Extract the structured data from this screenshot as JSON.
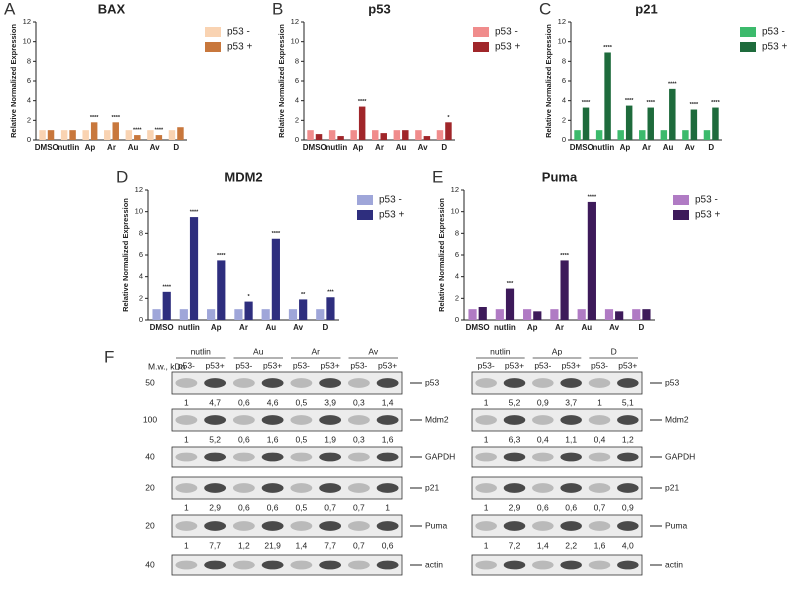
{
  "chart_data": [
    {
      "type": "bar",
      "panel": "A",
      "title": "BAX",
      "ylabel": "Relative Normalized Expression",
      "categories": [
        "DMSO",
        "nutlin",
        "Ap",
        "Ar",
        "Au",
        "Av",
        "D"
      ],
      "ylim": [
        0,
        12
      ],
      "yticks": [
        0,
        2,
        4,
        6,
        8,
        10,
        12
      ],
      "series": [
        {
          "name": "p53 -",
          "color": "#f9d3b2",
          "values": [
            1.0,
            1.0,
            1.0,
            1.0,
            1.0,
            1.0,
            1.0
          ]
        },
        {
          "name": "p53 +",
          "color": "#c8773c",
          "values": [
            1.0,
            1.0,
            1.8,
            1.8,
            0.5,
            0.5,
            1.3
          ],
          "significance": [
            null,
            null,
            "****",
            "****",
            "****",
            "****",
            null
          ]
        }
      ]
    },
    {
      "type": "bar",
      "panel": "B",
      "title": "p53",
      "ylabel": "Relative Normalized Expression",
      "categories": [
        "DMSO",
        "nutlin",
        "Ap",
        "Ar",
        "Au",
        "Av",
        "D"
      ],
      "ylim": [
        0,
        12
      ],
      "yticks": [
        0,
        2,
        4,
        6,
        8,
        10,
        12
      ],
      "series": [
        {
          "name": "p53 -",
          "color": "#f08c8c",
          "values": [
            1.0,
            1.0,
            1.0,
            1.0,
            1.0,
            1.0,
            1.0
          ]
        },
        {
          "name": "p53 +",
          "color": "#a0262a",
          "values": [
            0.6,
            0.4,
            3.4,
            0.7,
            1.0,
            0.4,
            1.8
          ],
          "significance": [
            null,
            null,
            "****",
            null,
            null,
            null,
            "*"
          ]
        }
      ]
    },
    {
      "type": "bar",
      "panel": "C",
      "title": "p21",
      "ylabel": "Relative Normalized Expression",
      "categories": [
        "DMSO",
        "nutlin",
        "Ap",
        "Ar",
        "Au",
        "Av",
        "D"
      ],
      "ylim": [
        0,
        12
      ],
      "yticks": [
        0,
        2,
        4,
        6,
        8,
        10,
        12
      ],
      "series": [
        {
          "name": "p53 -",
          "color": "#3cba6c",
          "values": [
            1.0,
            1.0,
            1.0,
            1.0,
            1.0,
            1.0,
            1.0
          ]
        },
        {
          "name": "p53 +",
          "color": "#1e6b3c",
          "values": [
            3.3,
            8.9,
            3.5,
            3.3,
            5.2,
            3.1,
            3.3
          ],
          "significance": [
            "****",
            "****",
            "****",
            "****",
            "****",
            "****",
            "****"
          ]
        }
      ]
    },
    {
      "type": "bar",
      "panel": "D",
      "title": "MDM2",
      "ylabel": "Relative Normalized Expression",
      "categories": [
        "DMSO",
        "nutlin",
        "Ap",
        "Ar",
        "Au",
        "Av",
        "D"
      ],
      "ylim": [
        0,
        12
      ],
      "yticks": [
        0,
        2,
        4,
        6,
        8,
        10,
        12
      ],
      "series": [
        {
          "name": "p53 -",
          "color": "#9fa6d9",
          "values": [
            1.0,
            1.0,
            1.0,
            1.0,
            1.0,
            1.0,
            1.0
          ]
        },
        {
          "name": "p53 +",
          "color": "#2e2e7e",
          "values": [
            2.6,
            9.5,
            5.5,
            1.7,
            7.5,
            1.9,
            2.1
          ],
          "significance": [
            "****",
            "****",
            "****",
            "*",
            "****",
            "**",
            "***"
          ]
        }
      ]
    },
    {
      "type": "bar",
      "panel": "E",
      "title": "Puma",
      "ylabel": "Relative Normalized Expression",
      "categories": [
        "DMSO",
        "nutlin",
        "Ap",
        "Ar",
        "Au",
        "Av",
        "D"
      ],
      "ylim": [
        0,
        12
      ],
      "yticks": [
        0,
        2,
        4,
        6,
        8,
        10,
        12
      ],
      "series": [
        {
          "name": "p53 -",
          "color": "#b07bc4",
          "values": [
            1.0,
            1.0,
            1.0,
            1.0,
            1.0,
            1.0,
            1.0
          ]
        },
        {
          "name": "p53 +",
          "color": "#3d1a5a",
          "values": [
            1.2,
            2.9,
            0.8,
            5.5,
            10.9,
            0.8,
            1.0
          ],
          "significance": [
            null,
            "***",
            null,
            "****",
            "****",
            null,
            null
          ]
        }
      ]
    }
  ],
  "blot": {
    "panel": "F",
    "mw_label": "M.w., kDa",
    "left": {
      "groups": [
        "nutlin",
        "Au",
        "Ar",
        "Av"
      ],
      "lanes": [
        "p53-",
        "p53+",
        "p53-",
        "p53+",
        "p53-",
        "p53+",
        "p53-",
        "p53+"
      ]
    },
    "right": {
      "groups": [
        "nutlin",
        "Ap",
        "D"
      ],
      "lanes": [
        "p53-",
        "p53+",
        "p53-",
        "p53+",
        "p53-",
        "p53+"
      ]
    },
    "rows": [
      {
        "marker": "50",
        "label": "p53",
        "left": [
          "1",
          "4,7",
          "0,6",
          "4,6",
          "0,5",
          "3,9",
          "0,3",
          "1,4"
        ],
        "right": [
          "1",
          "5,2",
          "0,9",
          "3,7",
          "1",
          "5,1"
        ]
      },
      {
        "marker": "100",
        "label": "Mdm2",
        "left": [
          "1",
          "5,2",
          "0,6",
          "1,6",
          "0,5",
          "1,9",
          "0,3",
          "1,6"
        ],
        "right": [
          "1",
          "6,3",
          "0,4",
          "1,1",
          "0,4",
          "1,2"
        ]
      },
      {
        "marker": "40",
        "label": "GAPDH"
      },
      {
        "marker": "20",
        "label": "p21",
        "left": [
          "1",
          "2,9",
          "0,6",
          "0,6",
          "0,5",
          "0,7",
          "0,7",
          "1"
        ],
        "right": [
          "1",
          "2,9",
          "0,6",
          "0,6",
          "0,7",
          "0,9"
        ]
      },
      {
        "marker": "20",
        "label": "Puma",
        "left": [
          "1",
          "7,7",
          "1,2",
          "21,9",
          "1,4",
          "7,7",
          "0,7",
          "0,6"
        ],
        "right": [
          "1",
          "7,2",
          "1,4",
          "2,2",
          "1,6",
          "4,0"
        ]
      },
      {
        "marker": "40",
        "label": "actin"
      }
    ]
  }
}
